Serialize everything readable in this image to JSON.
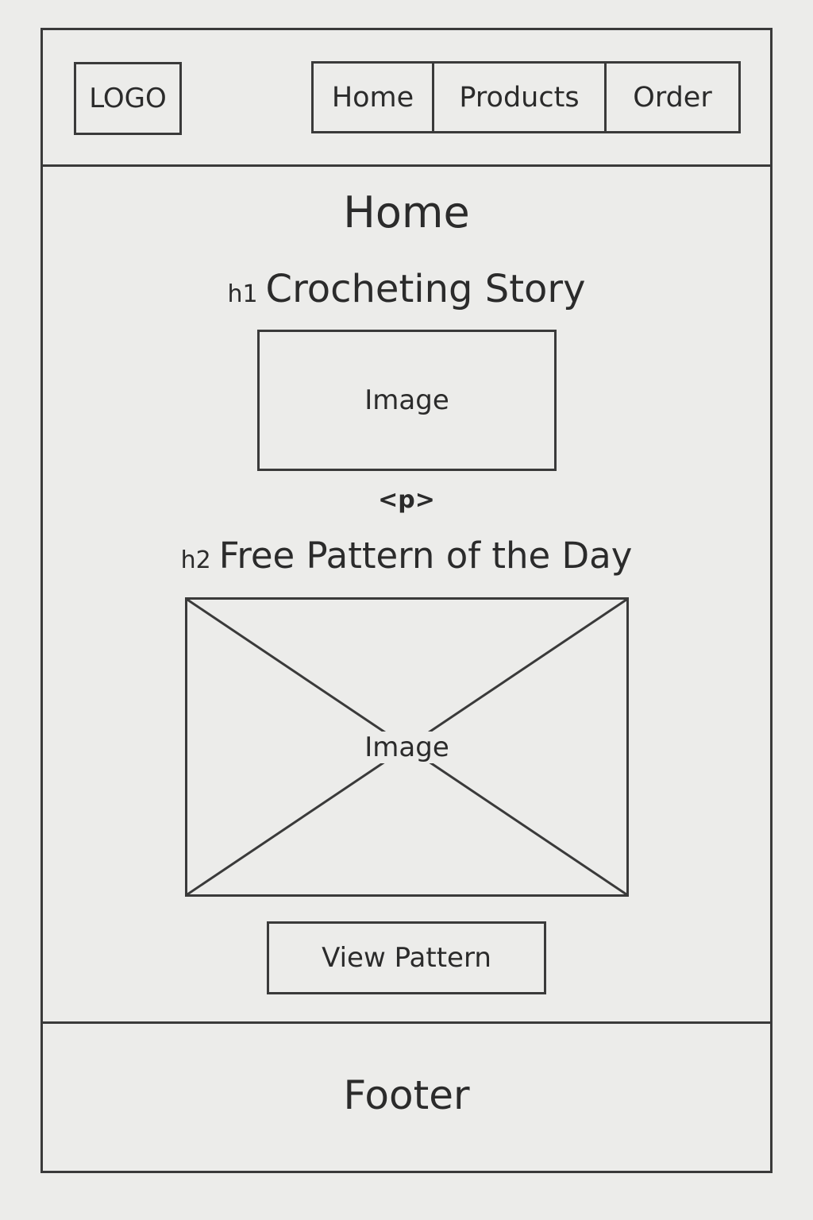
{
  "header": {
    "logo": "LOGO",
    "nav": {
      "home": "Home",
      "products": "Products",
      "order": "Order"
    }
  },
  "main": {
    "page_title": "Home",
    "h1": {
      "tag": "h1",
      "text": "Crocheting Story"
    },
    "story_image_label": "Image",
    "paragraph_tag": "<p>",
    "h2": {
      "tag": "h2",
      "text": "Free Pattern of the Day"
    },
    "pattern_image_label": "Image",
    "view_button": "View Pattern"
  },
  "footer": {
    "label": "Footer"
  }
}
